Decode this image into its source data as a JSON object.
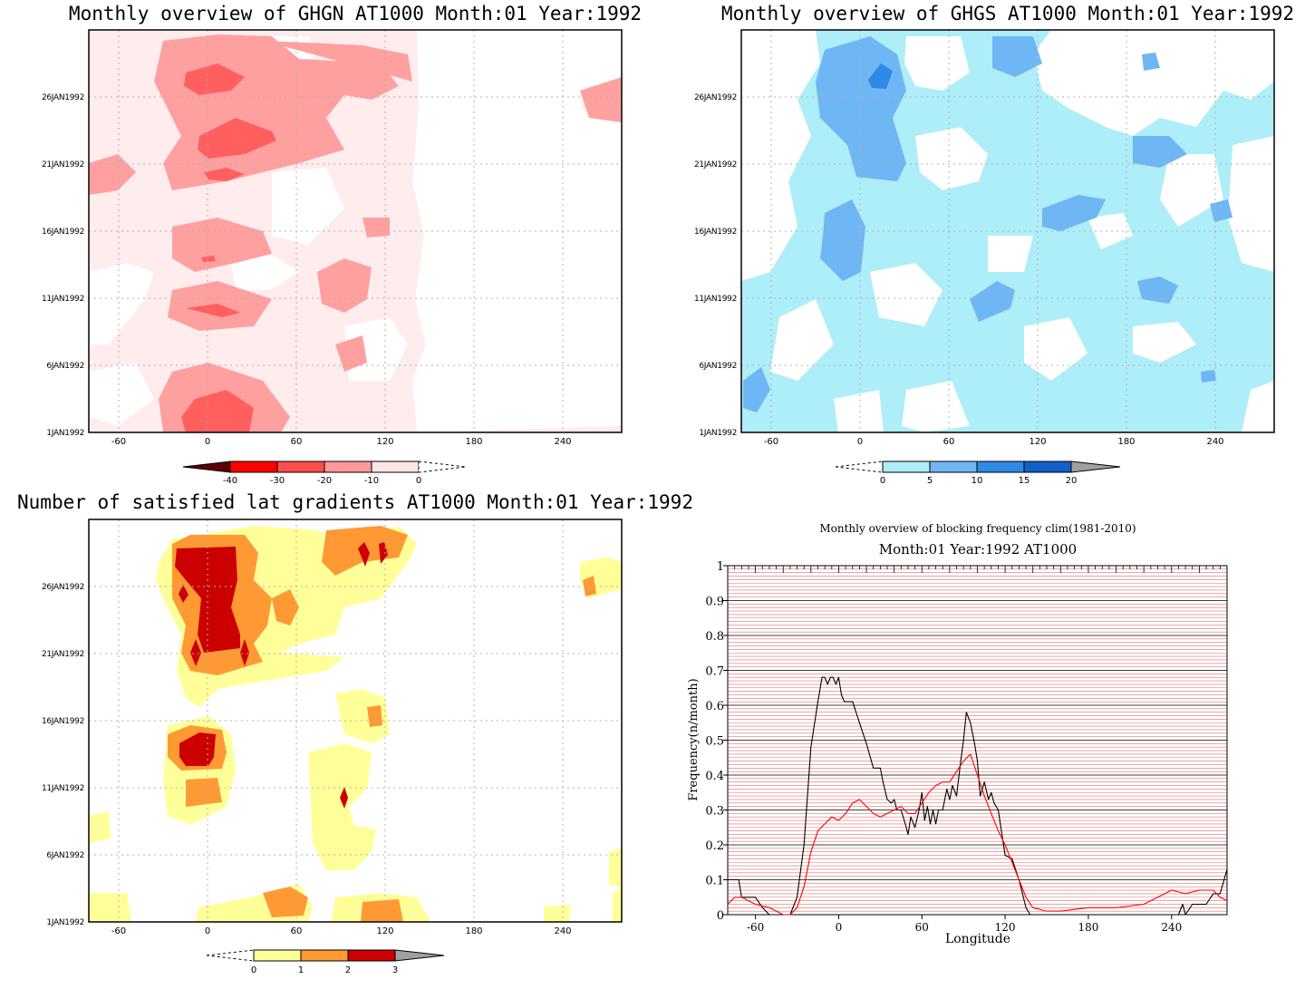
{
  "panels": [
    {
      "title": "Monthly overview of GHGN AT1000 Month:01 Year:1992",
      "xticks": [
        "-60",
        "0",
        "60",
        "120",
        "180",
        "240"
      ],
      "yticks": [
        "1JAN1992",
        "6JAN1992",
        "11JAN1992",
        "16JAN1992",
        "21JAN1992",
        "26JAN1992"
      ],
      "colorbar": {
        "labels": [
          "-40",
          "-30",
          "-20",
          "-10",
          "0"
        ],
        "colors": [
          "#5a0000",
          "#ff0000",
          "#ff4d4d",
          "#ff9999",
          "#ffe6e6"
        ]
      }
    },
    {
      "title": "Monthly overview of GHGS AT1000 Month:01 Year:1992",
      "xticks": [
        "-60",
        "0",
        "60",
        "120",
        "180",
        "240"
      ],
      "yticks": [
        "1JAN1992",
        "6JAN1992",
        "11JAN1992",
        "16JAN1992",
        "21JAN1992",
        "26JAN1992"
      ],
      "colorbar": {
        "labels": [
          "0",
          "5",
          "10",
          "15",
          "20"
        ],
        "colors": [
          "#aeeef8",
          "#6fb6f4",
          "#2e8ae6",
          "#1060c8",
          "#a0a0a0"
        ]
      }
    },
    {
      "title": "Number of satisfied lat gradients AT1000 Month:01 Year:1992",
      "xticks": [
        "-60",
        "0",
        "60",
        "120",
        "180",
        "240"
      ],
      "yticks": [
        "1JAN1992",
        "6JAN1992",
        "11JAN1992",
        "16JAN1992",
        "21JAN1992",
        "26JAN1992"
      ],
      "colorbar": {
        "labels": [
          "0",
          "1",
          "2",
          "3"
        ],
        "colors": [
          "#ffff99",
          "#ff9933",
          "#cc0000",
          "#a0a0a0"
        ]
      }
    }
  ],
  "chart_data": {
    "type": "line",
    "title": "Monthly overview of blocking frequency clim(1981-2010)",
    "subtitle": "Month:01 Year:1992  AT1000",
    "xlabel": "Longitude",
    "ylabel": "Frequency(n/month)",
    "xlim": [
      -80,
      280
    ],
    "ylim": [
      0,
      1
    ],
    "xticks": [
      "-60",
      "0",
      "60",
      "120",
      "180",
      "240"
    ],
    "yticks": [
      "0",
      "0.1",
      "0.2",
      "0.3",
      "0.4",
      "0.5",
      "0.6",
      "0.7",
      "0.8",
      "0.9",
      "1"
    ],
    "grid": true,
    "series": [
      {
        "color": "#000000",
        "x": [
          -80,
          -72,
          -70,
          -60,
          -55,
          -50,
          -40,
          -35,
          -30,
          -25,
          -20,
          -15,
          -12,
          -10,
          -8,
          -6,
          -4,
          -2,
          0,
          2,
          4,
          6,
          10,
          15,
          20,
          25,
          30,
          32,
          35,
          38,
          40,
          42,
          45,
          48,
          50,
          52,
          55,
          58,
          60,
          62,
          64,
          66,
          68,
          70,
          72,
          75,
          78,
          80,
          82,
          85,
          88,
          90,
          92,
          95,
          98,
          100,
          102,
          105,
          108,
          110,
          112,
          115,
          120,
          125,
          130,
          135,
          138,
          140,
          145,
          150,
          160,
          170,
          180,
          200,
          220,
          240,
          245,
          248,
          250,
          255,
          260,
          265,
          270,
          275,
          280
        ],
        "y": [
          0.1,
          0.1,
          0.05,
          0.05,
          0.02,
          0.0,
          0.0,
          0.0,
          0.05,
          0.2,
          0.48,
          0.61,
          0.68,
          0.68,
          0.66,
          0.68,
          0.68,
          0.66,
          0.68,
          0.63,
          0.61,
          0.61,
          0.61,
          0.55,
          0.49,
          0.42,
          0.42,
          0.38,
          0.33,
          0.32,
          0.33,
          0.3,
          0.3,
          0.26,
          0.23,
          0.28,
          0.25,
          0.3,
          0.35,
          0.27,
          0.31,
          0.26,
          0.3,
          0.26,
          0.3,
          0.3,
          0.36,
          0.33,
          0.37,
          0.34,
          0.44,
          0.5,
          0.58,
          0.55,
          0.49,
          0.44,
          0.34,
          0.38,
          0.33,
          0.35,
          0.32,
          0.3,
          0.17,
          0.16,
          0.1,
          0.02,
          0.0,
          0.0,
          0.0,
          0.0,
          0.0,
          0.0,
          0.0,
          0.0,
          0.0,
          0.0,
          0.0,
          0.03,
          0.0,
          0.03,
          0.03,
          0.03,
          0.06,
          0.06,
          0.13
        ]
      },
      {
        "color": "#ff0000",
        "x": [
          -80,
          -75,
          -70,
          -60,
          -50,
          -40,
          -35,
          -30,
          -25,
          -20,
          -15,
          -10,
          -5,
          0,
          5,
          10,
          15,
          20,
          25,
          30,
          35,
          40,
          45,
          50,
          55,
          60,
          65,
          70,
          75,
          80,
          85,
          90,
          95,
          100,
          105,
          110,
          115,
          120,
          125,
          130,
          135,
          140,
          150,
          160,
          180,
          200,
          220,
          240,
          250,
          260,
          270,
          275,
          280
        ],
        "y": [
          0.03,
          0.05,
          0.05,
          0.03,
          0.02,
          0.0,
          0.0,
          0.02,
          0.08,
          0.18,
          0.24,
          0.26,
          0.28,
          0.27,
          0.29,
          0.32,
          0.33,
          0.31,
          0.29,
          0.28,
          0.29,
          0.3,
          0.31,
          0.29,
          0.29,
          0.32,
          0.35,
          0.37,
          0.38,
          0.38,
          0.41,
          0.44,
          0.46,
          0.4,
          0.34,
          0.29,
          0.24,
          0.2,
          0.15,
          0.1,
          0.05,
          0.02,
          0.01,
          0.01,
          0.02,
          0.02,
          0.03,
          0.07,
          0.06,
          0.07,
          0.07,
          0.05,
          0.04
        ]
      }
    ]
  }
}
